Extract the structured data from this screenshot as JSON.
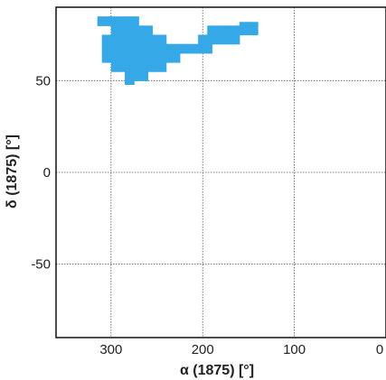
{
  "chart_data": {
    "type": "heatmap",
    "title": "",
    "xlabel": "α (1875) [°]",
    "ylabel": "δ (1875) [°]",
    "xlim": [
      360,
      0
    ],
    "ylim": [
      -90,
      90
    ],
    "x_ticks": [
      300,
      200,
      100,
      0
    ],
    "x_tick_labels": [
      "300",
      "200",
      "100",
      "0"
    ],
    "y_ticks": [
      50,
      0,
      -50
    ],
    "y_tick_labels": [
      "50",
      "0",
      "-50"
    ],
    "x_axis_reversed": true,
    "grid": true,
    "fill_color": "#35a8e8",
    "region_cells": [
      {
        "ra": [
          315,
          300
        ],
        "dec": [
          80,
          85
        ]
      },
      {
        "ra": [
          300,
          285
        ],
        "dec": [
          80,
          85
        ]
      },
      {
        "ra": [
          285,
          270
        ],
        "dec": [
          80,
          85
        ]
      },
      {
        "ra": [
          300,
          285
        ],
        "dec": [
          75,
          80
        ]
      },
      {
        "ra": [
          285,
          270
        ],
        "dec": [
          75,
          80
        ]
      },
      {
        "ra": [
          270,
          255
        ],
        "dec": [
          75,
          80
        ]
      },
      {
        "ra": [
          310,
          295
        ],
        "dec": [
          70,
          75
        ]
      },
      {
        "ra": [
          295,
          280
        ],
        "dec": [
          70,
          75
        ]
      },
      {
        "ra": [
          280,
          265
        ],
        "dec": [
          70,
          75
        ]
      },
      {
        "ra": [
          265,
          250
        ],
        "dec": [
          70,
          75
        ]
      },
      {
        "ra": [
          250,
          240
        ],
        "dec": [
          70,
          75
        ]
      },
      {
        "ra": [
          310,
          295
        ],
        "dec": [
          65,
          70
        ]
      },
      {
        "ra": [
          295,
          280
        ],
        "dec": [
          65,
          70
        ]
      },
      {
        "ra": [
          280,
          265
        ],
        "dec": [
          65,
          70
        ]
      },
      {
        "ra": [
          265,
          250
        ],
        "dec": [
          65,
          70
        ]
      },
      {
        "ra": [
          250,
          235
        ],
        "dec": [
          65,
          70
        ]
      },
      {
        "ra": [
          235,
          220
        ],
        "dec": [
          65,
          70
        ]
      },
      {
        "ra": [
          220,
          205
        ],
        "dec": [
          65,
          70
        ]
      },
      {
        "ra": [
          310,
          295
        ],
        "dec": [
          60,
          65
        ]
      },
      {
        "ra": [
          295,
          280
        ],
        "dec": [
          60,
          65
        ]
      },
      {
        "ra": [
          280,
          265
        ],
        "dec": [
          60,
          65
        ]
      },
      {
        "ra": [
          265,
          250
        ],
        "dec": [
          60,
          65
        ]
      },
      {
        "ra": [
          250,
          235
        ],
        "dec": [
          60,
          65
        ]
      },
      {
        "ra": [
          235,
          225
        ],
        "dec": [
          60,
          65
        ]
      },
      {
        "ra": [
          300,
          285
        ],
        "dec": [
          55,
          60
        ]
      },
      {
        "ra": [
          285,
          270
        ],
        "dec": [
          55,
          60
        ]
      },
      {
        "ra": [
          270,
          255
        ],
        "dec": [
          55,
          60
        ]
      },
      {
        "ra": [
          255,
          240
        ],
        "dec": [
          55,
          60
        ]
      },
      {
        "ra": [
          285,
          270
        ],
        "dec": [
          50,
          55
        ]
      },
      {
        "ra": [
          270,
          260
        ],
        "dec": [
          50,
          55
        ]
      },
      {
        "ra": [
          285,
          275
        ],
        "dec": [
          48,
          50
        ]
      },
      {
        "ra": [
          205,
          190
        ],
        "dec": [
          65,
          70
        ]
      },
      {
        "ra": [
          190,
          175
        ],
        "dec": [
          70,
          75
        ]
      },
      {
        "ra": [
          205,
          190
        ],
        "dec": [
          70,
          75
        ]
      },
      {
        "ra": [
          175,
          160
        ],
        "dec": [
          70,
          75
        ]
      },
      {
        "ra": [
          195,
          175
        ],
        "dec": [
          75,
          80
        ]
      },
      {
        "ra": [
          175,
          160
        ],
        "dec": [
          75,
          80
        ]
      },
      {
        "ra": [
          160,
          140
        ],
        "dec": [
          75,
          80
        ]
      },
      {
        "ra": [
          160,
          140
        ],
        "dec": [
          80,
          82
        ]
      }
    ]
  }
}
